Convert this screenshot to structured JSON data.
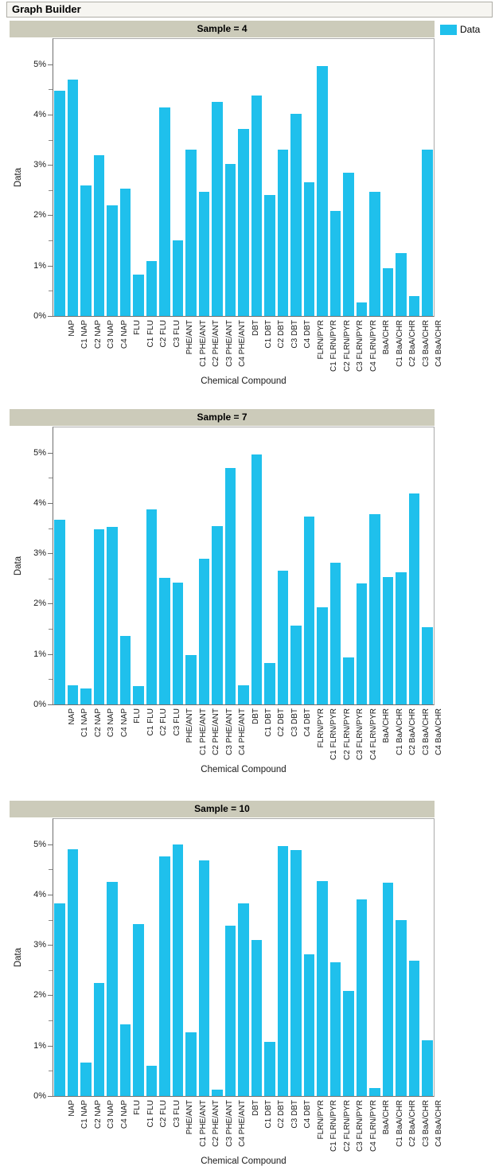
{
  "window": {
    "title": "Graph Builder"
  },
  "legend": {
    "label": "Data",
    "swatch_color": "#1FC0EC"
  },
  "axes": {
    "ylabel": "Data",
    "xlabel": "Chemical Compound",
    "yticks": [
      "0%",
      "1%",
      "2%",
      "3%",
      "4%",
      "5%"
    ],
    "ylim": [
      0,
      5.5
    ],
    "minor_tick_step_percent": 0.5,
    "grid": "off",
    "x_label_rotation": "vertical"
  },
  "chart_data": [
    {
      "type": "bar",
      "title": "Sample = 4",
      "legend_label": "Data",
      "legend_position": "top-right",
      "xlabel": "Chemical Compound",
      "ylabel": "Data",
      "ylim": [
        0,
        5.5
      ],
      "yunit": "%",
      "categories": [
        "NAP",
        "C1 NAP",
        "C2 NAP",
        "C3 NAP",
        "C4 NAP",
        "FLU",
        "C1 FLU",
        "C2 FLU",
        "C3 FLU",
        "PHE/ANT",
        "C1 PHE/ANT",
        "C2 PHE/ANT",
        "C3 PHE/ANT",
        "C4 PHE/ANT",
        "DBT",
        "C1 DBT",
        "C2 DBT",
        "C3 DBT",
        "C4 DBT",
        "FLRN/PYR",
        "C1 FLRN/PYR",
        "C2 FLRN/PYR",
        "C3 FLRN/PYR",
        "C4 FLRN/PYR",
        "BaA/CHR",
        "C1 BaA/CHR",
        "C2 BaA/CHR",
        "C3 BaA/CHR",
        "C4 BaA/CHR"
      ],
      "values": [
        4.48,
        4.69,
        2.59,
        3.19,
        2.2,
        2.53,
        0.82,
        1.09,
        4.14,
        1.5,
        3.3,
        2.46,
        4.25,
        3.02,
        3.72,
        4.38,
        2.4,
        3.3,
        4.02,
        2.66,
        4.97,
        2.08,
        2.84,
        0.27,
        2.46,
        0.95,
        1.25,
        0.4,
        3.3
      ]
    },
    {
      "type": "bar",
      "title": "Sample = 7",
      "legend_label": "Data",
      "xlabel": "Chemical Compound",
      "ylabel": "Data",
      "ylim": [
        0,
        5.5
      ],
      "yunit": "%",
      "categories": [
        "NAP",
        "C1 NAP",
        "C2 NAP",
        "C3 NAP",
        "C4 NAP",
        "FLU",
        "C1 FLU",
        "C2 FLU",
        "C3 FLU",
        "PHE/ANT",
        "C1 PHE/ANT",
        "C2 PHE/ANT",
        "C3 PHE/ANT",
        "C4 PHE/ANT",
        "DBT",
        "C1 DBT",
        "C2 DBT",
        "C3 DBT",
        "C4 DBT",
        "FLRN/PYR",
        "C1 FLRN/PYR",
        "C2 FLRN/PYR",
        "C3 FLRN/PYR",
        "C4 FLRN/PYR",
        "BaA/CHR",
        "C1 BaA/CHR",
        "C2 BaA/CHR",
        "C3 BaA/CHR",
        "C4 BaA/CHR"
      ],
      "values": [
        3.66,
        0.38,
        0.32,
        3.47,
        3.52,
        1.36,
        0.36,
        3.87,
        2.52,
        2.42,
        0.98,
        2.9,
        3.54,
        4.69,
        0.38,
        4.97,
        0.82,
        2.66,
        1.57,
        3.73,
        1.93,
        2.82,
        0.93,
        2.41,
        3.77,
        2.53,
        2.62,
        4.19,
        1.54
      ]
    },
    {
      "type": "bar",
      "title": "Sample = 10",
      "legend_label": "Data",
      "xlabel": "Chemical Compound",
      "ylabel": "Data",
      "ylim": [
        0,
        5.5
      ],
      "yunit": "%",
      "categories": [
        "NAP",
        "C1 NAP",
        "C2 NAP",
        "C3 NAP",
        "C4 NAP",
        "FLU",
        "C1 FLU",
        "C2 FLU",
        "C3 FLU",
        "PHE/ANT",
        "C1 PHE/ANT",
        "C2 PHE/ANT",
        "C3 PHE/ANT",
        "C4 PHE/ANT",
        "DBT",
        "C1 DBT",
        "C2 DBT",
        "C3 DBT",
        "C4 DBT",
        "FLRN/PYR",
        "C1 FLRN/PYR",
        "C2 FLRN/PYR",
        "C3 FLRN/PYR",
        "C4 FLRN/PYR",
        "BaA/CHR",
        "C1 BaA/CHR",
        "C2 BaA/CHR",
        "C3 BaA/CHR",
        "C4 BaA/CHR"
      ],
      "values": [
        3.82,
        4.9,
        0.67,
        2.24,
        4.25,
        1.43,
        3.41,
        0.6,
        4.76,
        4.99,
        1.27,
        4.68,
        0.12,
        3.38,
        3.82,
        3.1,
        1.07,
        4.96,
        4.89,
        2.82,
        4.26,
        2.65,
        2.09,
        3.91,
        0.16,
        4.24,
        3.5,
        2.68,
        1.1
      ]
    }
  ]
}
